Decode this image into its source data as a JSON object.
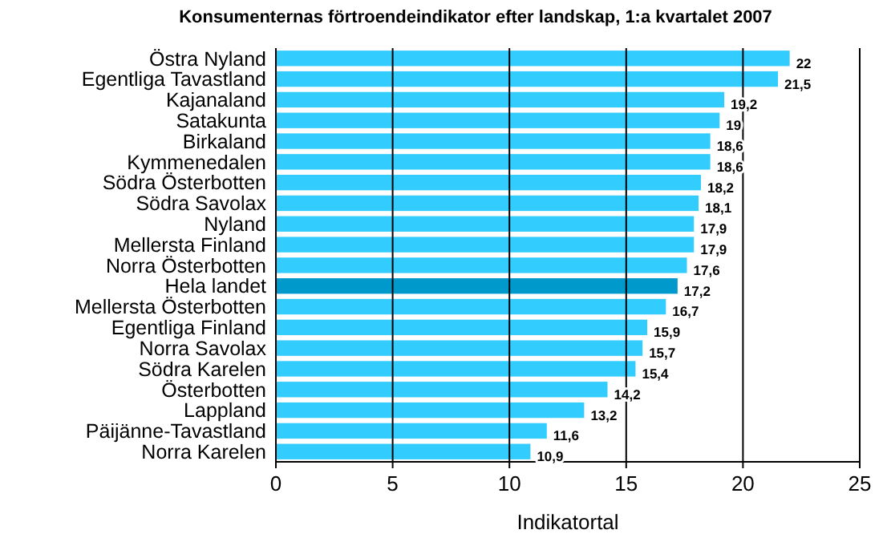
{
  "chart_data": {
    "type": "bar",
    "orientation": "horizontal",
    "title": "Konsumenternas förtroendeindikator efter landskap, 1:a kvartalet 2007",
    "xlabel": "Indikatortal",
    "categories": [
      "Östra Nyland",
      "Egentliga Tavastland",
      "Kajanaland",
      "Satakunta",
      "Birkaland",
      "Kymmenedalen",
      "Södra Österbotten",
      "Södra Savolax",
      "Nyland",
      "Mellersta Finland",
      "Norra Österbotten",
      "Hela landet",
      "Mellersta Österbotten",
      "Egentliga Finland",
      "Norra Savolax",
      "Södra Karelen",
      "Österbotten",
      "Lappland",
      "Päijänne-Tavastland",
      "Norra Karelen"
    ],
    "values": [
      22,
      21.5,
      19.2,
      19,
      18.6,
      18.6,
      18.2,
      18.1,
      17.9,
      17.9,
      17.6,
      17.2,
      16.7,
      15.9,
      15.7,
      15.4,
      14.2,
      13.2,
      11.6,
      10.9
    ],
    "value_labels": [
      "22",
      "21,5",
      "19,2",
      "19",
      "18,6",
      "18,6",
      "18,2",
      "18,1",
      "17,9",
      "17,9",
      "17,6",
      "17,2",
      "16,7",
      "15,9",
      "15,7",
      "15,4",
      "14,2",
      "13,2",
      "11,6",
      "10,9"
    ],
    "colors": [
      "#33ccff",
      "#33ccff",
      "#33ccff",
      "#33ccff",
      "#33ccff",
      "#33ccff",
      "#33ccff",
      "#33ccff",
      "#33ccff",
      "#33ccff",
      "#33ccff",
      "#0099cc",
      "#33ccff",
      "#33ccff",
      "#33ccff",
      "#33ccff",
      "#33ccff",
      "#33ccff",
      "#33ccff",
      "#33ccff"
    ],
    "xlim": [
      0,
      25
    ],
    "xticks": [
      0,
      5,
      10,
      15,
      20,
      25
    ],
    "grid": "x"
  }
}
